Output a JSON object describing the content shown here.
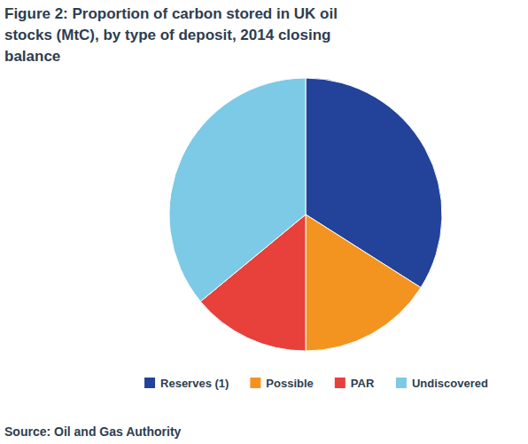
{
  "chart_data": {
    "type": "pie",
    "title": "Figure 2: Proportion of carbon stored in UK oil stocks (MtC), by type of deposit, 2014 closing balance",
    "categories": [
      "Reserves (1)",
      "Possible",
      "PAR",
      "Undiscovered"
    ],
    "values": [
      34,
      16,
      14,
      36
    ],
    "colors": [
      "#23439a",
      "#f39420",
      "#e8403b",
      "#7ccae5"
    ],
    "legend": "bottom",
    "source": "Source: Oil and Gas Authority"
  }
}
